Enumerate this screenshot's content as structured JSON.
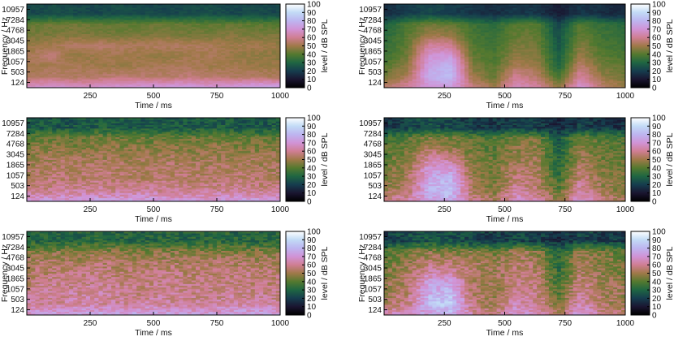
{
  "chart_data": {
    "type": "heatmap",
    "layout": {
      "rows": 3,
      "columns": 2
    },
    "colormap": "cubehelix",
    "colormap_stops": [
      "#000000",
      "#1a1530",
      "#163d4e",
      "#1f6642",
      "#54792f",
      "#a07949",
      "#d07e93",
      "#d193d6",
      "#bdb5f0",
      "#c2dbf6",
      "#ffffff"
    ],
    "panels": [
      {
        "id": "left-top",
        "xlabel": "Time / ms",
        "ylabel": "Frequency / Hz",
        "colorbar_label": "level / dB SPL",
        "x_ticks": [
          250,
          500,
          750,
          1000
        ],
        "y_ticks": [
          "124",
          "503",
          "1057",
          "1865",
          "3045",
          "4768",
          "7284",
          "10957"
        ],
        "colorbar_ticks": [
          0,
          10,
          20,
          30,
          40,
          50,
          60,
          70,
          80,
          90,
          100
        ],
        "xlim": [
          0,
          1000
        ],
        "zlim": [
          0,
          100
        ],
        "time_bins": 60,
        "frequency_bands": [
          "124",
          "503",
          "1057",
          "1865",
          "3045",
          "4768",
          "7284",
          "10957"
        ],
        "levels_db": [
          [
            68,
            70,
            67,
            69,
            70,
            71,
            72,
            73,
            70,
            72,
            75,
            74
          ],
          [
            52,
            55,
            53,
            54,
            56,
            55,
            54,
            56,
            55,
            53,
            54,
            52
          ],
          [
            50,
            51,
            52,
            50,
            49,
            51,
            52,
            53,
            50,
            51,
            49,
            50
          ],
          [
            52,
            56,
            48,
            50,
            51,
            49,
            48,
            50,
            52,
            49,
            48,
            47
          ],
          [
            49,
            50,
            54,
            55,
            53,
            52,
            54,
            53,
            52,
            50,
            51,
            49
          ],
          [
            44,
            45,
            46,
            45,
            44,
            45,
            46,
            44,
            45,
            46,
            44,
            45
          ],
          [
            42,
            43,
            44,
            42,
            41,
            42,
            43,
            42,
            41,
            42,
            41,
            40
          ],
          [
            22,
            24,
            23,
            22,
            24,
            23,
            22,
            23,
            24,
            22,
            23,
            22
          ]
        ],
        "noise_db": 2
      },
      {
        "id": "right-top",
        "xlabel": "Time / ms",
        "ylabel": "Frequency / Hz",
        "colorbar_label": "level / dB SPL",
        "x_ticks": [
          250,
          500,
          750,
          1000
        ],
        "y_ticks": [
          "124",
          "503",
          "1057",
          "1865",
          "3045",
          "4768",
          "7284",
          "10957"
        ],
        "colorbar_ticks": [
          0,
          10,
          20,
          30,
          40,
          50,
          60,
          70,
          80,
          90,
          100
        ],
        "xlim": [
          0,
          1000
        ],
        "zlim": [
          0,
          100
        ],
        "time_bins": 60,
        "frequency_bands": [
          "124",
          "503",
          "1057",
          "1865",
          "3045",
          "4768",
          "7284",
          "10957"
        ],
        "levels_db": [
          [
            55,
            62,
            70,
            72,
            58,
            50,
            66,
            62,
            48,
            70,
            56,
            50
          ],
          [
            45,
            52,
            78,
            82,
            50,
            42,
            60,
            54,
            38,
            62,
            48,
            44
          ],
          [
            40,
            48,
            74,
            80,
            46,
            40,
            52,
            50,
            30,
            56,
            44,
            42
          ],
          [
            36,
            44,
            70,
            72,
            42,
            38,
            48,
            46,
            28,
            50,
            40,
            38
          ],
          [
            34,
            42,
            62,
            60,
            40,
            36,
            45,
            44,
            26,
            46,
            38,
            36
          ],
          [
            32,
            40,
            50,
            48,
            38,
            34,
            42,
            42,
            24,
            42,
            36,
            34
          ],
          [
            30,
            38,
            44,
            42,
            36,
            32,
            40,
            40,
            22,
            40,
            34,
            32
          ],
          [
            16,
            20,
            22,
            20,
            18,
            16,
            18,
            18,
            12,
            18,
            16,
            15
          ]
        ],
        "noise_db": 2
      },
      {
        "id": "left-middle",
        "xlabel": "Time / ms",
        "ylabel": "",
        "colorbar_label": "level / dB SPL",
        "x_ticks": [
          250,
          500,
          750,
          1000
        ],
        "y_ticks": [
          "124",
          "503",
          "1057",
          "1865",
          "3045",
          "4768",
          "7284",
          "10957"
        ],
        "colorbar_ticks": [
          0,
          10,
          20,
          30,
          40,
          50,
          60,
          70,
          80,
          90,
          100
        ],
        "xlim": [
          0,
          1000
        ],
        "zlim": [
          0,
          100
        ],
        "time_bins": 60,
        "frequency_bands": [
          "124",
          "503",
          "1057",
          "1865",
          "3045",
          "4768",
          "7284",
          "10957"
        ],
        "levels_db": [
          [
            70,
            72,
            71,
            73,
            72,
            74,
            73,
            72,
            71,
            73,
            74,
            72
          ],
          [
            60,
            58,
            62,
            60,
            59,
            61,
            60,
            58,
            60,
            61,
            59,
            60
          ],
          [
            54,
            56,
            55,
            57,
            55,
            54,
            56,
            55,
            54,
            56,
            55,
            54
          ],
          [
            52,
            54,
            53,
            55,
            54,
            53,
            55,
            54,
            53,
            54,
            52,
            53
          ],
          [
            50,
            52,
            51,
            52,
            50,
            51,
            52,
            50,
            51,
            50,
            51,
            50
          ],
          [
            46,
            47,
            46,
            48,
            47,
            46,
            47,
            46,
            48,
            47,
            46,
            47
          ],
          [
            42,
            43,
            42,
            44,
            43,
            42,
            43,
            42,
            44,
            43,
            42,
            43
          ],
          [
            26,
            27,
            26,
            28,
            27,
            26,
            27,
            26,
            28,
            27,
            26,
            27
          ]
        ],
        "noise_db": 6
      },
      {
        "id": "right-middle",
        "xlabel": "Time / ms",
        "ylabel": "",
        "colorbar_label": "level / dB SPL",
        "x_ticks": [
          250,
          500,
          750,
          1000
        ],
        "y_ticks": [
          "124",
          "503",
          "1057",
          "1865",
          "3045",
          "4768",
          "7284",
          "10957"
        ],
        "colorbar_ticks": [
          0,
          10,
          20,
          30,
          40,
          50,
          60,
          70,
          80,
          90,
          100
        ],
        "xlim": [
          0,
          1000
        ],
        "zlim": [
          0,
          100
        ],
        "time_bins": 60,
        "frequency_bands": [
          "124",
          "503",
          "1057",
          "1865",
          "3045",
          "4768",
          "7284",
          "10957"
        ],
        "levels_db": [
          [
            60,
            64,
            72,
            76,
            60,
            52,
            68,
            64,
            50,
            72,
            58,
            52
          ],
          [
            50,
            54,
            80,
            84,
            52,
            46,
            62,
            56,
            40,
            64,
            50,
            46
          ],
          [
            46,
            52,
            76,
            80,
            50,
            44,
            56,
            54,
            36,
            58,
            48,
            46
          ],
          [
            44,
            50,
            72,
            72,
            48,
            44,
            54,
            52,
            32,
            54,
            46,
            44
          ],
          [
            42,
            48,
            62,
            60,
            46,
            42,
            50,
            50,
            30,
            50,
            44,
            42
          ],
          [
            40,
            44,
            52,
            50,
            44,
            40,
            48,
            48,
            28,
            48,
            42,
            40
          ],
          [
            36,
            40,
            46,
            44,
            40,
            38,
            44,
            44,
            26,
            44,
            40,
            38
          ],
          [
            18,
            22,
            24,
            22,
            20,
            18,
            20,
            20,
            14,
            20,
            18,
            17
          ]
        ],
        "noise_db": 6
      },
      {
        "id": "left-bottom",
        "xlabel": "Time / ms",
        "ylabel": "Frequency / Hz",
        "colorbar_label": "level / dB SPL",
        "x_ticks": [
          250,
          500,
          750,
          1000
        ],
        "y_ticks": [
          "124",
          "503",
          "1057",
          "1865",
          "3045",
          "4768",
          "7284",
          "10957"
        ],
        "colorbar_ticks": [
          0,
          10,
          20,
          30,
          40,
          50,
          60,
          70,
          80,
          90,
          100
        ],
        "xlim": [
          0,
          1000
        ],
        "zlim": [
          0,
          100
        ],
        "time_bins": 60,
        "frequency_bands": [
          "124",
          "503",
          "1057",
          "1865",
          "3045",
          "4768",
          "7284",
          "10957"
        ],
        "levels_db": [
          [
            72,
            74,
            73,
            75,
            74,
            76,
            75,
            74,
            73,
            75,
            76,
            74
          ],
          [
            62,
            60,
            64,
            62,
            61,
            63,
            62,
            60,
            62,
            63,
            61,
            62
          ],
          [
            58,
            60,
            62,
            63,
            60,
            58,
            60,
            59,
            58,
            60,
            59,
            58
          ],
          [
            56,
            60,
            57,
            59,
            58,
            57,
            59,
            58,
            57,
            58,
            56,
            57
          ],
          [
            54,
            56,
            57,
            58,
            55,
            56,
            57,
            55,
            56,
            55,
            56,
            55
          ],
          [
            52,
            53,
            52,
            54,
            53,
            52,
            53,
            52,
            54,
            53,
            52,
            53
          ],
          [
            46,
            47,
            46,
            48,
            47,
            46,
            47,
            46,
            48,
            47,
            46,
            47
          ],
          [
            30,
            31,
            30,
            32,
            31,
            30,
            31,
            30,
            32,
            31,
            30,
            31
          ]
        ],
        "noise_db": 7
      },
      {
        "id": "right-bottom",
        "xlabel": "Time / ms",
        "ylabel": "Frequency / Hz",
        "colorbar_label": "level / dB SPL",
        "x_ticks": [
          250,
          500,
          750,
          1000
        ],
        "y_ticks": [
          "124",
          "503",
          "1057",
          "1865",
          "3045",
          "4768",
          "7284",
          "10957"
        ],
        "colorbar_ticks": [
          0,
          10,
          20,
          30,
          40,
          50,
          60,
          70,
          80,
          90,
          100
        ],
        "xlim": [
          0,
          1000
        ],
        "zlim": [
          0,
          100
        ],
        "time_bins": 60,
        "frequency_bands": [
          "124",
          "503",
          "1057",
          "1865",
          "3045",
          "4768",
          "7284",
          "10957"
        ],
        "levels_db": [
          [
            64,
            68,
            74,
            78,
            64,
            56,
            70,
            66,
            54,
            74,
            60,
            56
          ],
          [
            54,
            58,
            82,
            86,
            56,
            50,
            66,
            60,
            44,
            66,
            54,
            50
          ],
          [
            50,
            56,
            78,
            82,
            54,
            48,
            60,
            58,
            40,
            60,
            52,
            50
          ],
          [
            48,
            54,
            74,
            74,
            52,
            50,
            58,
            56,
            36,
            58,
            50,
            48
          ],
          [
            46,
            52,
            64,
            62,
            54,
            50,
            56,
            54,
            34,
            54,
            48,
            46
          ],
          [
            44,
            48,
            56,
            54,
            52,
            48,
            54,
            52,
            32,
            52,
            46,
            44
          ],
          [
            40,
            44,
            48,
            46,
            48,
            44,
            50,
            48,
            30,
            48,
            44,
            42
          ],
          [
            20,
            24,
            26,
            24,
            22,
            20,
            22,
            22,
            16,
            22,
            20,
            19
          ]
        ],
        "noise_db": 7
      }
    ]
  }
}
